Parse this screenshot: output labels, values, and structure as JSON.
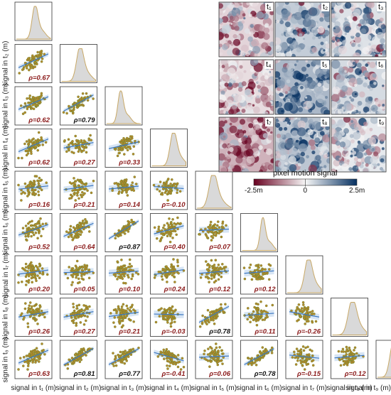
{
  "chart_data": {
    "type": "scatter",
    "variables": [
      "t1",
      "t2",
      "t3",
      "t4",
      "t5",
      "t6",
      "t7",
      "t8",
      "t9"
    ],
    "diagonal": "kde",
    "y_axis_labels": [
      "signal in t₂ (m)",
      "signal in t₃ (m)",
      "signal in t₄ (m)",
      "signal in t₅ (m)",
      "signal in t₆ (m)",
      "signal in t₇ (m)",
      "signal in t₈ (m)",
      "signal in t₉ (m)"
    ],
    "x_axis_labels": [
      "signal in t₁ (m)",
      "signal in t₂ (m)",
      "signal in t₃ (m)",
      "signal in t₄ (m)",
      "signal in t₅ (m)",
      "signal in t₆ (m)",
      "signal in t₇ (m)",
      "signal in t₈ (m)",
      "signal in t₉ (m)"
    ],
    "correlations": [
      {
        "row": 2,
        "col": 1,
        "text": "ρ=0.67",
        "value": 0.67,
        "strong": false
      },
      {
        "row": 3,
        "col": 1,
        "text": "ρ=0.62",
        "value": 0.62,
        "strong": false
      },
      {
        "row": 3,
        "col": 2,
        "text": "ρ=0.79",
        "value": 0.79,
        "strong": true
      },
      {
        "row": 4,
        "col": 1,
        "text": "ρ=0.62",
        "value": 0.62,
        "strong": false
      },
      {
        "row": 4,
        "col": 2,
        "text": "ρ=0.27",
        "value": 0.27,
        "strong": false
      },
      {
        "row": 4,
        "col": 3,
        "text": "ρ=0.33",
        "value": 0.33,
        "strong": false
      },
      {
        "row": 5,
        "col": 1,
        "text": "ρ=0.16",
        "value": 0.16,
        "strong": false
      },
      {
        "row": 5,
        "col": 2,
        "text": "ρ=0.21",
        "value": 0.21,
        "strong": false
      },
      {
        "row": 5,
        "col": 3,
        "text": "ρ=0.14",
        "value": 0.14,
        "strong": false
      },
      {
        "row": 5,
        "col": 4,
        "text": "ρ=-0.10",
        "value": -0.1,
        "strong": false
      },
      {
        "row": 6,
        "col": 1,
        "text": "ρ=0.52",
        "value": 0.52,
        "strong": false
      },
      {
        "row": 6,
        "col": 2,
        "text": "ρ=0.64",
        "value": 0.64,
        "strong": false
      },
      {
        "row": 6,
        "col": 3,
        "text": "ρ=0.87",
        "value": 0.87,
        "strong": true
      },
      {
        "row": 6,
        "col": 4,
        "text": "ρ=0.40",
        "value": 0.4,
        "strong": false
      },
      {
        "row": 6,
        "col": 5,
        "text": "ρ=0.07",
        "value": 0.07,
        "strong": false
      },
      {
        "row": 7,
        "col": 1,
        "text": "ρ=0.20",
        "value": 0.2,
        "strong": false
      },
      {
        "row": 7,
        "col": 2,
        "text": "ρ=0.05",
        "value": 0.05,
        "strong": false
      },
      {
        "row": 7,
        "col": 3,
        "text": "ρ=0.10",
        "value": 0.1,
        "strong": false
      },
      {
        "row": 7,
        "col": 4,
        "text": "ρ=0.24",
        "value": 0.24,
        "strong": false
      },
      {
        "row": 7,
        "col": 5,
        "text": "ρ=0.12",
        "value": 0.12,
        "strong": false
      },
      {
        "row": 7,
        "col": 6,
        "text": "ρ=0.12",
        "value": 0.12,
        "strong": false
      },
      {
        "row": 8,
        "col": 1,
        "text": "ρ=0.26",
        "value": 0.26,
        "strong": false
      },
      {
        "row": 8,
        "col": 2,
        "text": "ρ=0.27",
        "value": 0.27,
        "strong": false
      },
      {
        "row": 8,
        "col": 3,
        "text": "ρ=0.21",
        "value": 0.21,
        "strong": false
      },
      {
        "row": 8,
        "col": 4,
        "text": "ρ=-0.03",
        "value": -0.03,
        "strong": false
      },
      {
        "row": 8,
        "col": 5,
        "text": "ρ=0.78",
        "value": 0.78,
        "strong": true
      },
      {
        "row": 8,
        "col": 6,
        "text": "ρ=0.11",
        "value": 0.11,
        "strong": false
      },
      {
        "row": 8,
        "col": 7,
        "text": "ρ=-0.26",
        "value": -0.26,
        "strong": false
      },
      {
        "row": 9,
        "col": 1,
        "text": "ρ=0.63",
        "value": 0.63,
        "strong": false
      },
      {
        "row": 9,
        "col": 2,
        "text": "ρ=0.81",
        "value": 0.81,
        "strong": true
      },
      {
        "row": 9,
        "col": 3,
        "text": "ρ=0.77",
        "value": 0.77,
        "strong": true
      },
      {
        "row": 9,
        "col": 4,
        "text": "ρ=-0.41",
        "value": -0.41,
        "strong": false
      },
      {
        "row": 9,
        "col": 5,
        "text": "ρ=0.06",
        "value": 0.06,
        "strong": false
      },
      {
        "row": 9,
        "col": 6,
        "text": "ρ=0.78",
        "value": 0.78,
        "strong": true
      },
      {
        "row": 9,
        "col": 7,
        "text": "ρ=-0.15",
        "value": -0.15,
        "strong": false
      },
      {
        "row": 9,
        "col": 8,
        "text": "ρ=0.12",
        "value": 0.12,
        "strong": false
      }
    ],
    "colors": {
      "points": "#b8862e",
      "point_edge": "#5f8b2c",
      "regression": "#3d78c2",
      "band": "#bcd3ec",
      "kde_fill": "#d9d9d9",
      "kde_line": "#c8a866",
      "weak_text": "#8b1a1a",
      "strong_text": "#111111"
    }
  },
  "maps": {
    "labels": [
      "t₁",
      "t₂",
      "t₃",
      "t₄",
      "t₅",
      "t₆",
      "t₇",
      "t₈",
      "t₉"
    ],
    "colorbar": {
      "title": "pixel motion signal",
      "min_label": "-2.5m",
      "mid_label": "0",
      "max_label": "2.5m",
      "min": -2.5,
      "max": 2.5,
      "colors": {
        "negative": "#67001f",
        "neutral": "#f7f7f7",
        "positive": "#053061"
      }
    }
  }
}
